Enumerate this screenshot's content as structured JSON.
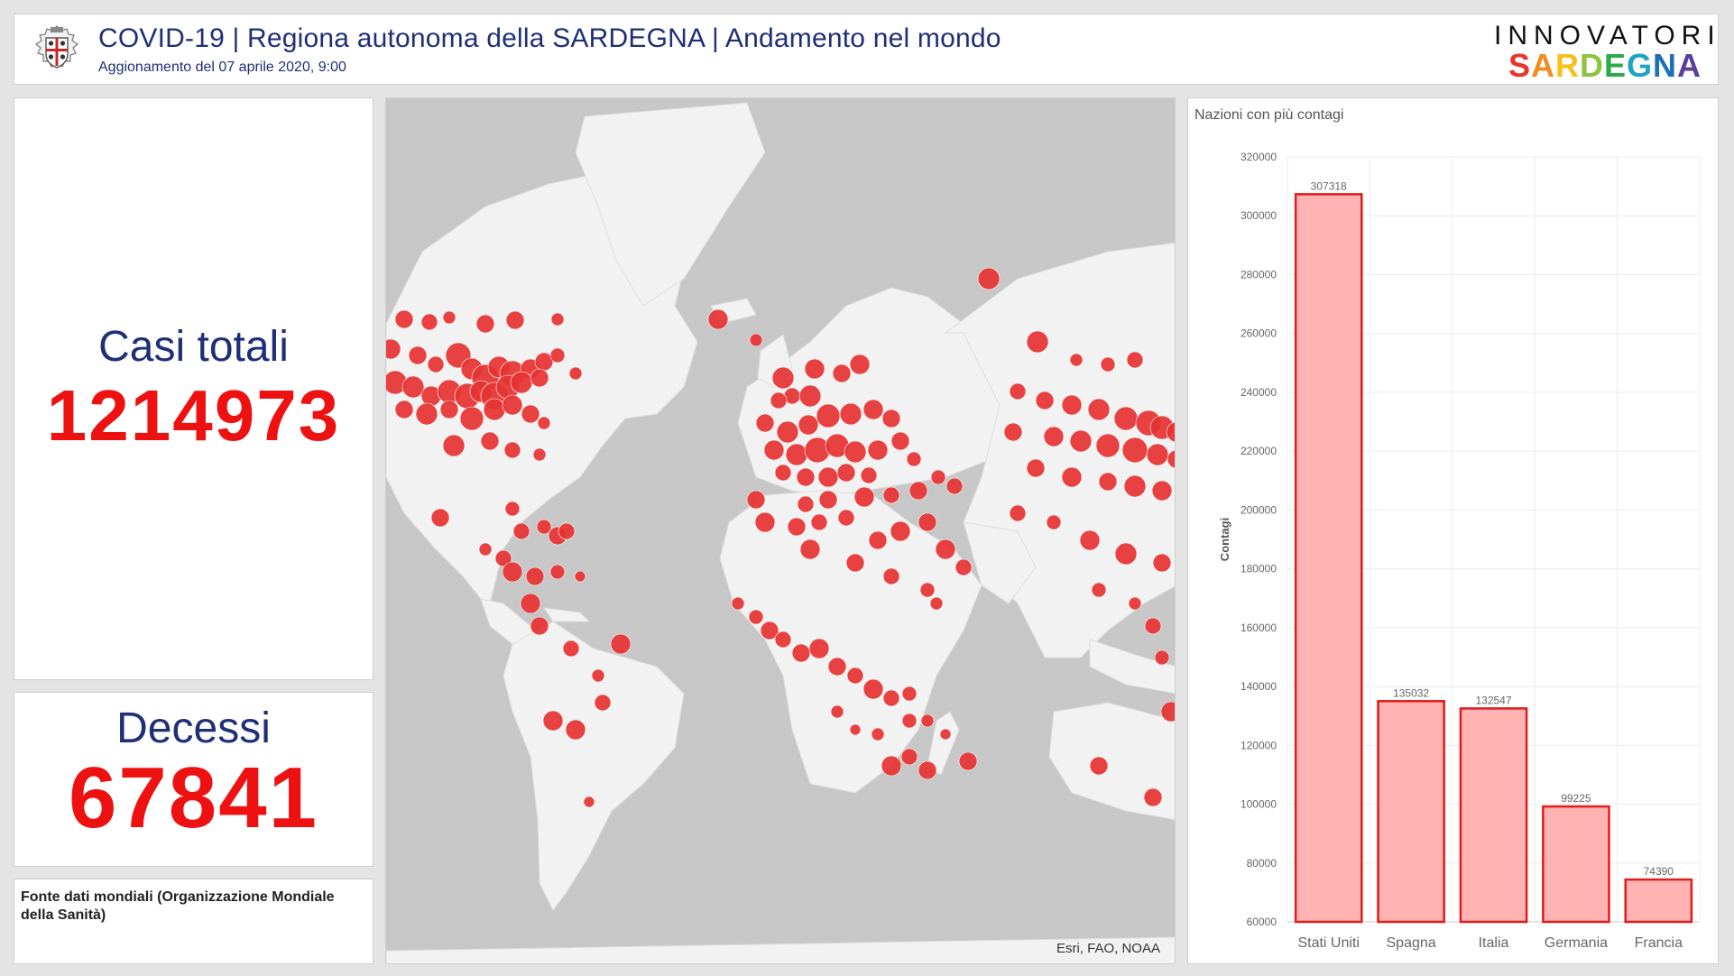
{
  "header": {
    "title": "COVID-19 | Regiona autonoma della SARDEGNA | Andamento nel mondo",
    "subtitle": "Aggionamento del 07 aprile 2020, 9:00",
    "crest_icon": "sardinia-crest-icon",
    "logo": {
      "top": "INNOVATORI",
      "bottom": "SARDEGNA",
      "bottom_colors": [
        "#e8362a",
        "#f28c1c",
        "#f6c11b",
        "#8cc43f",
        "#2eaa4a",
        "#1ea5c4",
        "#1d6fb8",
        "#5b3e99"
      ]
    }
  },
  "kpis": {
    "cases": {
      "label": "Casi totali",
      "value": "1214973"
    },
    "deaths": {
      "label": "Decessi",
      "value": "67841"
    }
  },
  "source": {
    "text": "Fonte dati mondiali (Organizzazione Mondiale della Sanità)"
  },
  "map": {
    "attribution": "Esri, FAO, NOAA",
    "marker_color": "#e63232",
    "land_color": "#f2f2f2",
    "water_color": "#c7c7c7"
  },
  "chart_data": {
    "type": "bar",
    "title": "Nazioni con più contagi",
    "ylabel": "Contagi",
    "xlabel": "",
    "categories": [
      "Stati Uniti",
      "Spagna",
      "Italia",
      "Germania",
      "Francia"
    ],
    "values": [
      307318,
      135032,
      132547,
      99225,
      74390
    ],
    "ylim": [
      60000,
      320000
    ],
    "yticks": [
      60000,
      80000,
      100000,
      120000,
      140000,
      160000,
      180000,
      200000,
      220000,
      240000,
      260000,
      280000,
      300000,
      320000
    ],
    "grid": true,
    "bar_fill": "#ffb3b3",
    "bar_stroke": "#e21b1b"
  }
}
